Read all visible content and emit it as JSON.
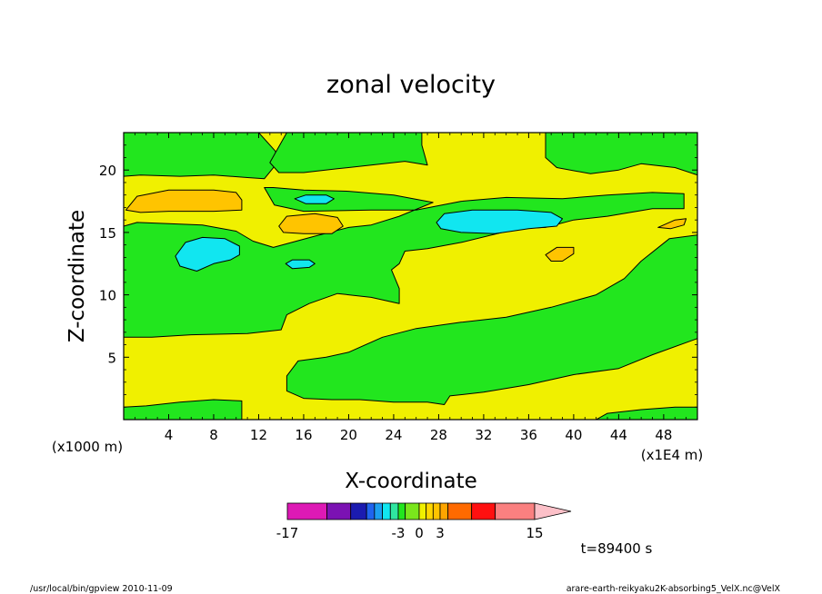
{
  "chart_data": {
    "type": "heatmap",
    "title": "zonal velocity",
    "xlabel": "X-coordinate",
    "ylabel": "Z-coordinate",
    "x_unit_label": "(x1E4 m)",
    "y_unit_label": "(x1000 m)",
    "xlim": [
      0,
      51
    ],
    "ylim": [
      0,
      23
    ],
    "x_ticks": [
      4,
      8,
      12,
      16,
      20,
      24,
      28,
      32,
      36,
      40,
      44,
      48
    ],
    "y_ticks": [
      5,
      10,
      15,
      20
    ],
    "time_label": "t=89400 s",
    "colorbar": {
      "tick_labels": [
        "-17",
        "-3",
        "0",
        "3",
        "15"
      ],
      "tick_values": [
        -17,
        -3,
        0,
        3,
        15
      ],
      "bins": [
        {
          "from": -17,
          "to": -12,
          "color": "#dd19b5"
        },
        {
          "from": -12,
          "to": -9,
          "color": "#7b12b3"
        },
        {
          "from": -9,
          "to": -7,
          "color": "#1b1bb0"
        },
        {
          "from": -7,
          "to": -6,
          "color": "#1f64ee"
        },
        {
          "from": -6,
          "to": -5,
          "color": "#1c9ff0"
        },
        {
          "from": -5,
          "to": -4,
          "color": "#11e6f0"
        },
        {
          "from": -4,
          "to": -3,
          "color": "#2fe6a0"
        },
        {
          "from": -3,
          "to": -2,
          "color": "#22e61e"
        },
        {
          "from": -2,
          "to": 0,
          "color": "#7ae61c"
        },
        {
          "from": 0,
          "to": 1,
          "color": "#f0f000"
        },
        {
          "from": 1,
          "to": 2,
          "color": "#ffd700"
        },
        {
          "from": 2,
          "to": 3,
          "color": "#ffc400"
        },
        {
          "from": 3,
          "to": 4,
          "color": "#ffa500"
        },
        {
          "from": 4,
          "to": 7,
          "color": "#ff6a00"
        },
        {
          "from": 7,
          "to": 10,
          "color": "#ff1010"
        },
        {
          "from": 10,
          "to": 15,
          "color": "#fa8080"
        }
      ],
      "overflow_color": "#fcc0c8"
    },
    "field_colors": {
      "yellow": "#f0f000",
      "green": "#22e61e",
      "orange": "#ffc400",
      "cyan": "#11e6f0"
    },
    "regions": [
      {
        "color": "green",
        "points": [
          [
            0,
            23
          ],
          [
            0,
            19.5
          ],
          [
            1.5,
            19.6
          ],
          [
            5,
            19.5
          ],
          [
            8,
            19.6
          ],
          [
            11,
            19.4
          ],
          [
            12.5,
            19.3
          ],
          [
            13.5,
            20.4
          ],
          [
            13.5,
            21.5
          ],
          [
            12,
            23
          ]
        ]
      },
      {
        "color": "green",
        "points": [
          [
            14.5,
            23
          ],
          [
            13,
            20.6
          ],
          [
            13.8,
            19.8
          ],
          [
            16,
            19.8
          ],
          [
            19,
            20.1
          ],
          [
            22,
            20.4
          ],
          [
            25,
            20.7
          ],
          [
            27,
            20.4
          ],
          [
            26.5,
            22
          ],
          [
            26.5,
            23
          ]
        ]
      },
      {
        "color": "green",
        "points": [
          [
            37.5,
            23
          ],
          [
            37.5,
            21
          ],
          [
            38.5,
            20.2
          ],
          [
            41.5,
            19.7
          ],
          [
            44,
            20
          ],
          [
            46,
            20.5
          ],
          [
            49,
            20.2
          ],
          [
            51,
            19.6
          ],
          [
            51,
            23
          ]
        ]
      },
      {
        "color": "green",
        "points": [
          [
            12.5,
            18.6
          ],
          [
            13.4,
            17.2
          ],
          [
            16,
            16.7
          ],
          [
            22,
            16.8
          ],
          [
            26,
            16.8
          ],
          [
            30,
            17.5
          ],
          [
            34,
            17.8
          ],
          [
            39,
            17.7
          ],
          [
            43,
            18
          ],
          [
            47,
            18.2
          ],
          [
            49.8,
            18.1
          ],
          [
            49.8,
            16.9
          ],
          [
            47,
            16.9
          ],
          [
            43,
            16.3
          ],
          [
            40,
            16
          ],
          [
            37.5,
            15.4
          ],
          [
            35,
            15.3
          ],
          [
            30,
            14.2
          ],
          [
            27,
            13.7
          ],
          [
            25,
            13.5
          ],
          [
            24.5,
            12.5
          ],
          [
            23.8,
            12
          ],
          [
            24.5,
            10.5
          ],
          [
            24.5,
            9.3
          ],
          [
            22,
            9.8
          ],
          [
            19,
            10.1
          ],
          [
            16.5,
            9.3
          ],
          [
            14.5,
            8.4
          ],
          [
            14,
            7.2
          ],
          [
            11,
            6.9
          ],
          [
            6,
            6.8
          ],
          [
            2.5,
            6.6
          ],
          [
            0,
            6.6
          ],
          [
            0,
            15.5
          ],
          [
            1.2,
            15.8
          ],
          [
            4,
            15.7
          ],
          [
            7,
            15.6
          ],
          [
            10,
            15.1
          ],
          [
            11.5,
            14.3
          ],
          [
            13.3,
            13.8
          ],
          [
            17,
            14.7
          ],
          [
            20,
            15.4
          ],
          [
            22,
            15.6
          ],
          [
            24.5,
            16.3
          ],
          [
            27.5,
            17.4
          ],
          [
            24,
            18
          ],
          [
            20,
            18.3
          ],
          [
            16,
            18.4
          ],
          [
            13.3,
            18.6
          ]
        ]
      },
      {
        "color": "green",
        "points": [
          [
            51,
            14.8
          ],
          [
            48.5,
            14.5
          ],
          [
            46,
            12.7
          ],
          [
            44.5,
            11.3
          ],
          [
            42,
            10
          ],
          [
            38,
            9
          ],
          [
            34,
            8.2
          ],
          [
            30,
            7.8
          ],
          [
            26,
            7.3
          ],
          [
            23,
            6.6
          ],
          [
            20,
            5.4
          ],
          [
            18,
            5
          ],
          [
            15.5,
            4.7
          ],
          [
            14.5,
            3.5
          ],
          [
            14.5,
            2.3
          ],
          [
            16,
            1.7
          ],
          [
            18.5,
            1.6
          ],
          [
            21,
            1.6
          ],
          [
            24,
            1.4
          ],
          [
            27,
            1.4
          ],
          [
            28.5,
            1.2
          ],
          [
            29,
            1.9
          ],
          [
            32,
            2.2
          ],
          [
            36,
            2.8
          ],
          [
            40,
            3.6
          ],
          [
            44,
            4.1
          ],
          [
            47,
            5.2
          ],
          [
            51,
            6.5
          ]
        ]
      },
      {
        "color": "green",
        "points": [
          [
            0,
            0
          ],
          [
            0,
            1
          ],
          [
            2,
            1.1
          ],
          [
            5,
            1.4
          ],
          [
            8,
            1.6
          ],
          [
            10.5,
            1.5
          ],
          [
            10.5,
            0
          ]
        ]
      },
      {
        "color": "green",
        "points": [
          [
            42,
            0
          ],
          [
            43,
            0.5
          ],
          [
            46,
            0.8
          ],
          [
            49,
            1
          ],
          [
            51,
            1
          ],
          [
            51,
            0
          ]
        ]
      },
      {
        "color": "orange",
        "points": [
          [
            0.2,
            16.8
          ],
          [
            1.2,
            17.9
          ],
          [
            4,
            18.4
          ],
          [
            8,
            18.4
          ],
          [
            10,
            18.2
          ],
          [
            10.5,
            17.6
          ],
          [
            10.5,
            16.8
          ],
          [
            8,
            16.7
          ],
          [
            4,
            16.7
          ],
          [
            1.5,
            16.6
          ]
        ]
      },
      {
        "color": "orange",
        "points": [
          [
            13.8,
            15.5
          ],
          [
            14.5,
            16.3
          ],
          [
            17,
            16.5
          ],
          [
            19,
            16.2
          ],
          [
            19.5,
            15.5
          ],
          [
            18.5,
            14.9
          ],
          [
            16,
            14.9
          ],
          [
            14.2,
            15
          ]
        ]
      },
      {
        "color": "orange",
        "points": [
          [
            37.5,
            13.2
          ],
          [
            38.5,
            13.8
          ],
          [
            40,
            13.8
          ],
          [
            40,
            13.3
          ],
          [
            39,
            12.7
          ],
          [
            38,
            12.7
          ]
        ]
      },
      {
        "color": "orange",
        "points": [
          [
            47.5,
            15.4
          ],
          [
            49,
            16
          ],
          [
            50,
            16.1
          ],
          [
            49.8,
            15.6
          ],
          [
            48.6,
            15.3
          ]
        ]
      },
      {
        "color": "cyan",
        "points": [
          [
            15.2,
            17.7
          ],
          [
            16.2,
            18
          ],
          [
            18,
            18
          ],
          [
            18.7,
            17.7
          ],
          [
            18,
            17.3
          ],
          [
            16.2,
            17.3
          ]
        ]
      },
      {
        "color": "cyan",
        "points": [
          [
            27.8,
            15.8
          ],
          [
            28.5,
            16.5
          ],
          [
            31,
            16.8
          ],
          [
            35,
            16.8
          ],
          [
            38,
            16.6
          ],
          [
            39,
            16.1
          ],
          [
            38.5,
            15.5
          ],
          [
            36,
            15.3
          ],
          [
            33,
            14.9
          ],
          [
            30,
            15
          ],
          [
            28.2,
            15.3
          ]
        ]
      },
      {
        "color": "cyan",
        "points": [
          [
            4.6,
            13.1
          ],
          [
            5.5,
            14.2
          ],
          [
            7,
            14.6
          ],
          [
            9,
            14.5
          ],
          [
            10.3,
            13.9
          ],
          [
            10.3,
            13.2
          ],
          [
            9.5,
            12.8
          ],
          [
            8,
            12.5
          ],
          [
            6.5,
            11.9
          ],
          [
            5,
            12.3
          ]
        ]
      },
      {
        "color": "cyan",
        "points": [
          [
            14.4,
            12.5
          ],
          [
            15,
            12.8
          ],
          [
            16.5,
            12.8
          ],
          [
            17,
            12.5
          ],
          [
            16.5,
            12.2
          ],
          [
            15,
            12.1
          ]
        ]
      }
    ]
  },
  "footer": {
    "left": "/usr/local/bin/gpview   2010-11-09",
    "right": "arare-earth-reikyaku2K-absorbing5_VelX.nc@VelX"
  }
}
